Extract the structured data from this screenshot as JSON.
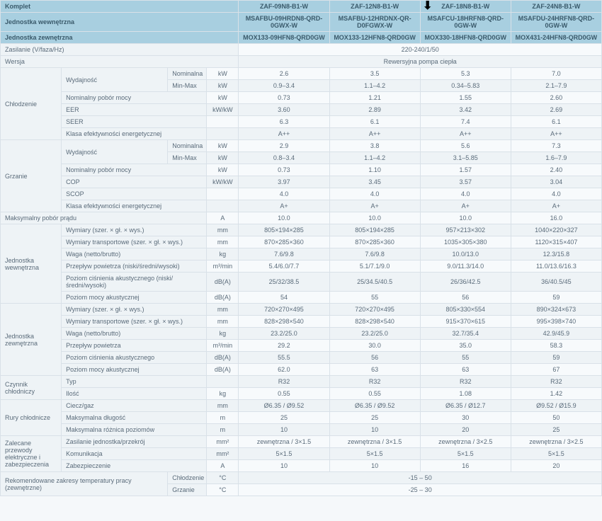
{
  "colors": {
    "header_bg": "#a8cfe0",
    "odd_bg": "#f7fafc",
    "even_bg": "#eef3f6",
    "border": "#d9e1e8",
    "text": "#5a6b7a"
  },
  "header": {
    "komplet": "Komplet",
    "jw": "Jednostka wewnętrzna",
    "jz": "Jednostka zewnętrzna",
    "models": [
      "ZAF-09N8-B1-W",
      "ZAF-12N8-B1-W",
      "ZAF-18N8-B1-W",
      "ZAF-24N8-B1-W"
    ],
    "indoor": [
      "MSAFBU-09HRDN8-QRD-0GWX-W",
      "MSAFBU-12HRDNX-QR-D0FGWX-W",
      "MSAFCU-18HRFN8-QRD-0GW-W",
      "MSAFDU-24HRFN8-QRD-0GW-W"
    ],
    "outdoor": [
      "MOX133-09HFN8-QRD0GW",
      "MOX133-12HFN8-QRD0GW",
      "MOX330-18HFN8-QRD0GW",
      "MOX431-24HFN8-QRD0GW"
    ]
  },
  "rows": {
    "zasilanie": {
      "label": "Zasilanie (V/faza/Hz)",
      "val": "220-240/1/50"
    },
    "wersja": {
      "label": "Wersja",
      "val": "Rewersyjna pompa ciepła"
    },
    "chlodzenie": {
      "label": "Chłodzenie",
      "wyd": {
        "label": "Wydajność",
        "nom": {
          "label": "Nominalna",
          "unit": "kW",
          "v": [
            "2.6",
            "3.5",
            "5.3",
            "7.0"
          ]
        },
        "mm": {
          "label": "Min-Max",
          "unit": "kW",
          "v": [
            "0.9–3.4",
            "1.1–4.2",
            "0.34–5.83",
            "2.1–7.9"
          ]
        }
      },
      "npm": {
        "label": "Nominalny pobór mocy",
        "unit": "kW",
        "v": [
          "0.73",
          "1.21",
          "1.55",
          "2.60"
        ]
      },
      "eer": {
        "label": "EER",
        "unit": "kW/kW",
        "v": [
          "3.60",
          "2.89",
          "3.42",
          "2.69"
        ]
      },
      "seer": {
        "label": "SEER",
        "unit": "",
        "v": [
          "6.3",
          "6.1",
          "7.4",
          "6.1"
        ]
      },
      "kee": {
        "label": "Klasa efektywności energetycznej",
        "unit": "",
        "v": [
          "A++",
          "A++",
          "A++",
          "A++"
        ]
      }
    },
    "grzanie": {
      "label": "Grzanie",
      "wyd": {
        "label": "Wydajność",
        "nom": {
          "label": "Nominalna",
          "unit": "kW",
          "v": [
            "2.9",
            "3.8",
            "5.6",
            "7.3"
          ]
        },
        "mm": {
          "label": "Min-Max",
          "unit": "kW",
          "v": [
            "0.8–3.4",
            "1.1–4.2",
            "3.1–5.85",
            "1.6–7.9"
          ]
        }
      },
      "npm": {
        "label": "Nominalny pobór mocy",
        "unit": "kW",
        "v": [
          "0.73",
          "1.10",
          "1.57",
          "2.40"
        ]
      },
      "cop": {
        "label": "COP",
        "unit": "kW/kW",
        "v": [
          "3.97",
          "3.45",
          "3.57",
          "3.04"
        ]
      },
      "scop": {
        "label": "SCOP",
        "unit": "",
        "v": [
          "4.0",
          "4.0",
          "4.0",
          "4.0"
        ]
      },
      "kee": {
        "label": "Klasa efektywności energetycznej",
        "unit": "",
        "v": [
          "A+",
          "A+",
          "A+",
          "A+"
        ]
      }
    },
    "mpp": {
      "label": "Maksymalny pobór prądu",
      "unit": "A",
      "v": [
        "10.0",
        "10.0",
        "10.0",
        "16.0"
      ]
    },
    "jw": {
      "label": "Jednostka wewnętrzna",
      "wym": {
        "label": "Wymiary (szer. × gł. × wys.)",
        "unit": "mm",
        "v": [
          "805×194×285",
          "805×194×285",
          "957×213×302",
          "1040×220×327"
        ]
      },
      "wymt": {
        "label": "Wymiary transportowe (szer. × gł. × wys.)",
        "unit": "mm",
        "v": [
          "870×285×360",
          "870×285×360",
          "1035×305×380",
          "1120×315×407"
        ]
      },
      "waga": {
        "label": "Waga (netto/brutto)",
        "unit": "kg",
        "v": [
          "7.6/9.8",
          "7.6/9.8",
          "10.0/13.0",
          "12.3/15.8"
        ]
      },
      "pp": {
        "label": "Przepływ powietrza (niski/średni/wysoki)",
        "unit": "m³/min",
        "v": [
          "5.4/6.0/7.7",
          "5.1/7.1/9.0",
          "9.0/11.3/14.0",
          "11.0/13.6/16.3"
        ]
      },
      "pca": {
        "label": "Poziom ciśnienia akustycznego (niski/średni/wysoki)",
        "unit": "dB(A)",
        "v": [
          "25/32/38.5",
          "25/34.5/40.5",
          "26/36/42.5",
          "36/40.5/45"
        ]
      },
      "pma": {
        "label": "Poziom mocy akustycznej",
        "unit": "dB(A)",
        "v": [
          "54",
          "55",
          "56",
          "59"
        ]
      }
    },
    "jz": {
      "label": "Jednostka zewnętrzna",
      "wym": {
        "label": "Wymiary (szer. × gł. × wys.)",
        "unit": "mm",
        "v": [
          "720×270×495",
          "720×270×495",
          "805×330×554",
          "890×324×673"
        ]
      },
      "wymt": {
        "label": "Wymiary transportowe (szer. × gł. × wys.)",
        "unit": "mm",
        "v": [
          "828×298×540",
          "828×298×540",
          "915×370×615",
          "995×398×740"
        ]
      },
      "waga": {
        "label": "Waga (netto/brutto)",
        "unit": "kg",
        "v": [
          "23.2/25.0",
          "23.2/25.0",
          "32.7/35.4",
          "42.9/45.9"
        ]
      },
      "pp": {
        "label": "Przepływ powietrza",
        "unit": "m³/min",
        "v": [
          "29.2",
          "30.0",
          "35.0",
          "58.3"
        ]
      },
      "pca": {
        "label": "Poziom ciśnienia akustycznego",
        "unit": "dB(A)",
        "v": [
          "55.5",
          "56",
          "55",
          "59"
        ]
      },
      "pma": {
        "label": "Poziom mocy akustycznej",
        "unit": "dB(A)",
        "v": [
          "62.0",
          "63",
          "63",
          "67"
        ]
      }
    },
    "cc": {
      "label": "Czynnik chłodniczy",
      "typ": {
        "label": "Typ",
        "unit": "",
        "v": [
          "R32",
          "R32",
          "R32",
          "R32"
        ]
      },
      "ilosc": {
        "label": "Ilość",
        "unit": "kg",
        "v": [
          "0.55",
          "0.55",
          "1.08",
          "1.42"
        ]
      }
    },
    "rc": {
      "label": "Rury chłodnicze",
      "cg": {
        "label": "Ciecz/gaz",
        "unit": "mm",
        "v": [
          "Ø6.35 / Ø9.52",
          "Ø6.35 / Ø9.52",
          "Ø6.35 / Ø12.7",
          "Ø9.52 / Ø15.9"
        ]
      },
      "md": {
        "label": "Maksymalna długość",
        "unit": "m",
        "v": [
          "25",
          "25",
          "30",
          "50"
        ]
      },
      "mrp": {
        "label": "Maksymalna różnica poziomów",
        "unit": "m",
        "v": [
          "10",
          "10",
          "20",
          "25"
        ]
      }
    },
    "zpe": {
      "label": "Zalecane przewody elektryczne i zabezpieczenia",
      "zjp": {
        "label": "Zasilanie jednostka/przekrój",
        "unit": "mm²",
        "v": [
          "zewnętrzna / 3×1.5",
          "zewnętrzna / 3×1.5",
          "zewnętrzna / 3×2.5",
          "zewnętrzna / 3×2.5"
        ]
      },
      "kom": {
        "label": "Komunikacja",
        "unit": "mm²",
        "v": [
          "5×1.5",
          "5×1.5",
          "5×1.5",
          "5×1.5"
        ]
      },
      "zab": {
        "label": "Zabezpieczenie",
        "unit": "A",
        "v": [
          "10",
          "10",
          "16",
          "20"
        ]
      }
    },
    "rztp": {
      "label": "Rekomendowane zakresy temperatury pracy (zewnętrzne)",
      "chl": {
        "label": "Chłodzenie",
        "unit": "°C",
        "v": "-15 – 50"
      },
      "grz": {
        "label": "Grzanie",
        "unit": "°C",
        "v": "-25 – 30"
      }
    }
  }
}
